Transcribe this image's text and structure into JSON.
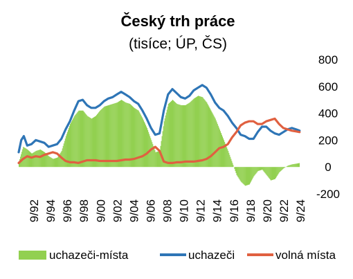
{
  "chart_data": {
    "type": "bar+line",
    "title": "Český trh práce",
    "subtitle": "(tisíce; ÚP, ČS)",
    "y_range": [
      -200,
      800
    ],
    "y_ticks": [
      "800",
      "600",
      "400",
      "200",
      "0",
      "-200"
    ],
    "x_range": [
      "1992-01",
      "2024-12"
    ],
    "x_tick_labels": [
      "9/92",
      "9/94",
      "9/96",
      "9/98",
      "9/00",
      "9/02",
      "9/04",
      "9/06",
      "9/08",
      "9/10",
      "9/12",
      "9/14",
      "9/16",
      "9/18",
      "9/20",
      "9/22",
      "9/24"
    ],
    "legend_position": "bottom",
    "series": [
      {
        "name": "uchazeči-místa",
        "kind": "bar",
        "color": "#92D050",
        "points": [
          [
            1992.0,
            40
          ],
          [
            1992.5,
            150
          ],
          [
            1993.0,
            130
          ],
          [
            1993.5,
            100
          ],
          [
            1994.0,
            120
          ],
          [
            1994.5,
            130
          ],
          [
            1995.0,
            110
          ],
          [
            1995.5,
            80
          ],
          [
            1996.0,
            60
          ],
          [
            1996.5,
            70
          ],
          [
            1997.0,
            120
          ],
          [
            1997.5,
            230
          ],
          [
            1998.0,
            320
          ],
          [
            1998.5,
            380
          ],
          [
            1999.0,
            420
          ],
          [
            1999.5,
            420
          ],
          [
            2000.0,
            380
          ],
          [
            2000.5,
            360
          ],
          [
            2001.0,
            380
          ],
          [
            2001.5,
            420
          ],
          [
            2002.0,
            450
          ],
          [
            2002.5,
            460
          ],
          [
            2003.0,
            470
          ],
          [
            2003.5,
            480
          ],
          [
            2004.0,
            500
          ],
          [
            2004.5,
            480
          ],
          [
            2005.0,
            470
          ],
          [
            2005.5,
            440
          ],
          [
            2006.0,
            420
          ],
          [
            2006.5,
            360
          ],
          [
            2007.0,
            290
          ],
          [
            2007.5,
            200
          ],
          [
            2008.0,
            110
          ],
          [
            2008.5,
            120
          ],
          [
            2009.0,
            340
          ],
          [
            2009.5,
            470
          ],
          [
            2010.0,
            500
          ],
          [
            2010.5,
            470
          ],
          [
            2011.0,
            460
          ],
          [
            2011.5,
            460
          ],
          [
            2012.0,
            480
          ],
          [
            2012.5,
            510
          ],
          [
            2013.0,
            530
          ],
          [
            2013.5,
            520
          ],
          [
            2014.0,
            480
          ],
          [
            2014.5,
            420
          ],
          [
            2015.0,
            360
          ],
          [
            2015.5,
            280
          ],
          [
            2016.0,
            200
          ],
          [
            2016.5,
            120
          ],
          [
            2017.0,
            30
          ],
          [
            2017.5,
            -60
          ],
          [
            2018.0,
            -110
          ],
          [
            2018.5,
            -140
          ],
          [
            2019.0,
            -130
          ],
          [
            2019.5,
            -70
          ],
          [
            2020.0,
            -30
          ],
          [
            2020.5,
            -20
          ],
          [
            2021.0,
            -60
          ],
          [
            2021.5,
            -100
          ],
          [
            2022.0,
            -90
          ],
          [
            2022.5,
            -40
          ],
          [
            2023.0,
            -10
          ],
          [
            2023.5,
            10
          ],
          [
            2024.0,
            20
          ],
          [
            2024.5,
            25
          ],
          [
            2024.9,
            30
          ]
        ]
      },
      {
        "name": "uchazeči",
        "kind": "line",
        "color": "#2E75B6",
        "points": [
          [
            1992.0,
            110
          ],
          [
            1992.3,
            200
          ],
          [
            1992.6,
            230
          ],
          [
            1993.0,
            160
          ],
          [
            1993.5,
            170
          ],
          [
            1994.0,
            200
          ],
          [
            1994.5,
            190
          ],
          [
            1995.0,
            180
          ],
          [
            1995.5,
            150
          ],
          [
            1996.0,
            160
          ],
          [
            1996.5,
            170
          ],
          [
            1997.0,
            210
          ],
          [
            1997.5,
            280
          ],
          [
            1998.0,
            340
          ],
          [
            1998.5,
            420
          ],
          [
            1999.0,
            490
          ],
          [
            1999.5,
            500
          ],
          [
            2000.0,
            460
          ],
          [
            2000.5,
            440
          ],
          [
            2001.0,
            440
          ],
          [
            2001.5,
            460
          ],
          [
            2002.0,
            490
          ],
          [
            2002.5,
            510
          ],
          [
            2003.0,
            520
          ],
          [
            2003.5,
            540
          ],
          [
            2004.0,
            560
          ],
          [
            2004.5,
            540
          ],
          [
            2005.0,
            520
          ],
          [
            2005.5,
            490
          ],
          [
            2006.0,
            470
          ],
          [
            2006.5,
            420
          ],
          [
            2007.0,
            360
          ],
          [
            2007.5,
            290
          ],
          [
            2008.0,
            240
          ],
          [
            2008.5,
            250
          ],
          [
            2009.0,
            420
          ],
          [
            2009.5,
            540
          ],
          [
            2010.0,
            580
          ],
          [
            2010.5,
            550
          ],
          [
            2011.0,
            520
          ],
          [
            2011.5,
            510
          ],
          [
            2012.0,
            530
          ],
          [
            2012.5,
            570
          ],
          [
            2013.0,
            590
          ],
          [
            2013.5,
            610
          ],
          [
            2014.0,
            590
          ],
          [
            2014.5,
            540
          ],
          [
            2015.0,
            480
          ],
          [
            2015.5,
            440
          ],
          [
            2016.0,
            420
          ],
          [
            2016.5,
            380
          ],
          [
            2017.0,
            330
          ],
          [
            2017.5,
            290
          ],
          [
            2018.0,
            240
          ],
          [
            2018.5,
            230
          ],
          [
            2019.0,
            210
          ],
          [
            2019.5,
            210
          ],
          [
            2020.0,
            260
          ],
          [
            2020.5,
            300
          ],
          [
            2021.0,
            300
          ],
          [
            2021.5,
            270
          ],
          [
            2022.0,
            250
          ],
          [
            2022.5,
            240
          ],
          [
            2023.0,
            260
          ],
          [
            2023.5,
            280
          ],
          [
            2024.0,
            290
          ],
          [
            2024.5,
            280
          ],
          [
            2024.9,
            270
          ]
        ]
      },
      {
        "name": "volná místa",
        "kind": "line",
        "color": "#E06040",
        "points": [
          [
            1992.0,
            30
          ],
          [
            1992.5,
            60
          ],
          [
            1993.0,
            80
          ],
          [
            1993.5,
            70
          ],
          [
            1994.0,
            80
          ],
          [
            1994.5,
            75
          ],
          [
            1995.0,
            90
          ],
          [
            1995.5,
            100
          ],
          [
            1996.0,
            110
          ],
          [
            1996.5,
            100
          ],
          [
            1997.0,
            70
          ],
          [
            1997.5,
            45
          ],
          [
            1998.0,
            35
          ],
          [
            1998.5,
            35
          ],
          [
            1999.0,
            30
          ],
          [
            1999.5,
            40
          ],
          [
            2000.0,
            50
          ],
          [
            2000.5,
            50
          ],
          [
            2001.0,
            50
          ],
          [
            2001.5,
            45
          ],
          [
            2002.0,
            45
          ],
          [
            2002.5,
            45
          ],
          [
            2003.0,
            45
          ],
          [
            2003.5,
            45
          ],
          [
            2004.0,
            50
          ],
          [
            2004.5,
            55
          ],
          [
            2005.0,
            55
          ],
          [
            2005.5,
            60
          ],
          [
            2006.0,
            70
          ],
          [
            2006.5,
            80
          ],
          [
            2007.0,
            100
          ],
          [
            2007.5,
            130
          ],
          [
            2008.0,
            150
          ],
          [
            2008.5,
            120
          ],
          [
            2009.0,
            40
          ],
          [
            2009.5,
            30
          ],
          [
            2010.0,
            30
          ],
          [
            2010.5,
            35
          ],
          [
            2011.0,
            35
          ],
          [
            2011.5,
            40
          ],
          [
            2012.0,
            40
          ],
          [
            2012.5,
            40
          ],
          [
            2013.0,
            45
          ],
          [
            2013.5,
            50
          ],
          [
            2014.0,
            60
          ],
          [
            2014.5,
            80
          ],
          [
            2015.0,
            110
          ],
          [
            2015.5,
            140
          ],
          [
            2016.0,
            150
          ],
          [
            2016.5,
            170
          ],
          [
            2017.0,
            220
          ],
          [
            2017.5,
            260
          ],
          [
            2018.0,
            310
          ],
          [
            2018.5,
            330
          ],
          [
            2019.0,
            340
          ],
          [
            2019.5,
            340
          ],
          [
            2020.0,
            320
          ],
          [
            2020.5,
            320
          ],
          [
            2021.0,
            340
          ],
          [
            2021.5,
            350
          ],
          [
            2022.0,
            360
          ],
          [
            2022.5,
            320
          ],
          [
            2023.0,
            290
          ],
          [
            2023.5,
            280
          ],
          [
            2024.0,
            270
          ],
          [
            2024.5,
            265
          ],
          [
            2024.9,
            260
          ]
        ]
      }
    ]
  }
}
